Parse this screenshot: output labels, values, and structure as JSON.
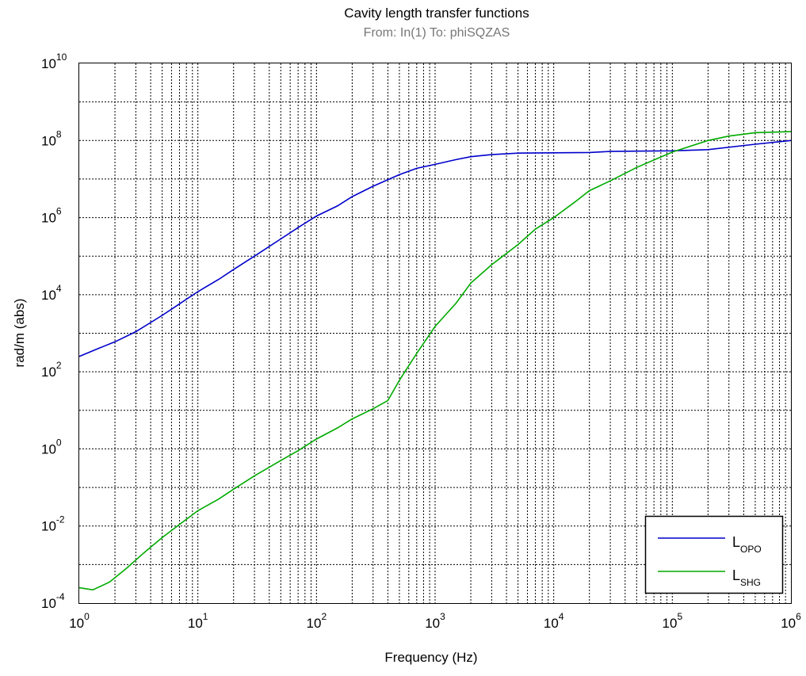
{
  "chart_data": {
    "type": "line",
    "title": "Cavity length transfer functions",
    "subtitle": "From: In(1)  To: phiSQZAS",
    "xlabel": "Frequency  (Hz)",
    "ylabel": "rad/m (abs)",
    "xscale": "log",
    "yscale": "log",
    "xlim": [
      1,
      1000000
    ],
    "ylim": [
      0.0001,
      10000000000
    ],
    "grid": true,
    "legend_position": "bottom-right",
    "x_ticks": [
      {
        "base": "10",
        "exp": "0"
      },
      {
        "base": "10",
        "exp": "1"
      },
      {
        "base": "10",
        "exp": "2"
      },
      {
        "base": "10",
        "exp": "3"
      },
      {
        "base": "10",
        "exp": "4"
      },
      {
        "base": "10",
        "exp": "5"
      },
      {
        "base": "10",
        "exp": "6"
      }
    ],
    "y_ticks": [
      {
        "base": "10",
        "exp": "-4"
      },
      {
        "base": "10",
        "exp": "-2"
      },
      {
        "base": "10",
        "exp": "0"
      },
      {
        "base": "10",
        "exp": "2"
      },
      {
        "base": "10",
        "exp": "4"
      },
      {
        "base": "10",
        "exp": "6"
      },
      {
        "base": "10",
        "exp": "8"
      },
      {
        "base": "10",
        "exp": "10"
      }
    ],
    "series": [
      {
        "name": "L_OPO",
        "label_main": "L",
        "label_sub": "OPO",
        "color": "#0000cc",
        "x": [
          1,
          1.5,
          2,
          3,
          5,
          7,
          10,
          15,
          20,
          30,
          50,
          70,
          100,
          150,
          200,
          300,
          500,
          700,
          1000,
          1500,
          2000,
          3000,
          5000,
          10000,
          20000,
          30000,
          50000,
          100000,
          200000,
          500000,
          1000000
        ],
        "y": [
          250,
          420,
          600,
          1100,
          2900,
          5800,
          12000,
          25000,
          45000,
          100000,
          280000,
          550000,
          1100000,
          2000000,
          3500000,
          6500000,
          13000000,
          19000000,
          24000000,
          32000000,
          38000000,
          43000000,
          47000000,
          48000000,
          49000000,
          52000000,
          53000000,
          54000000,
          58000000,
          80000000,
          100000000
        ]
      },
      {
        "name": "L_SHG",
        "label_main": "L",
        "label_sub": "SHG",
        "color": "#00aa00",
        "x": [
          1,
          1.3,
          1.8,
          2.5,
          3.5,
          5,
          7,
          10,
          15,
          20,
          30,
          50,
          70,
          100,
          150,
          200,
          300,
          400,
          500,
          700,
          1000,
          1500,
          2000,
          3000,
          5000,
          7000,
          10000,
          15000,
          20000,
          30000,
          50000,
          100000,
          200000,
          300000,
          500000,
          1000000
        ],
        "y": [
          0.00025,
          0.00022,
          0.00035,
          0.0008,
          0.002,
          0.005,
          0.011,
          0.025,
          0.05,
          0.09,
          0.2,
          0.5,
          0.9,
          1.8,
          3.5,
          6,
          11,
          18,
          60,
          300,
          1500,
          6000,
          20000,
          60000,
          200000,
          500000,
          1000000,
          2500000,
          5000000,
          9000000,
          20000000,
          50000000,
          100000000,
          130000000,
          160000000,
          170000000
        ]
      }
    ]
  }
}
